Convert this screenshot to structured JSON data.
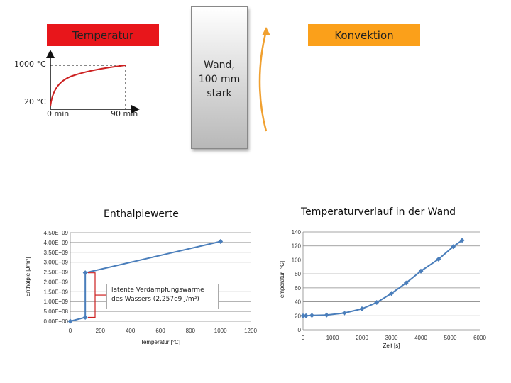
{
  "top": {
    "temperatur_label": "Temperatur",
    "konvektion_label": "Konvektion",
    "wall_label": "Wand,\n100 mm\nstark",
    "mini_chart": {
      "y_top": "1000 °C",
      "y_bottom": "20 °C",
      "x_left": "0 min",
      "x_right": "90 min"
    },
    "colors": {
      "temperatur": "#e8161b",
      "konvektion": "#fba01a",
      "curve": "#cc2020",
      "arrow": "#f0a030"
    }
  },
  "annotation": {
    "line1": "latente Verdampfungswärme",
    "line2": "des Wassers (2.257e9 J/m³)"
  },
  "chart_data": [
    {
      "type": "line",
      "title": "Enthalpiewerte",
      "xlabel": "Temperatur [°C]",
      "ylabel": "Enthalpie [J/m³]",
      "xlim": [
        0,
        1200
      ],
      "ylim": [
        0,
        4500000000.0
      ],
      "x_ticks": [
        "0",
        "200",
        "400",
        "600",
        "800",
        "1000",
        "1200"
      ],
      "y_ticks": [
        "0.00E+00",
        "5.00E+08",
        "1.00E+09",
        "1.50E+09",
        "2.00E+09",
        "2.50E+09",
        "3.00E+09",
        "3.50E+09",
        "4.00E+09",
        "4.50E+09"
      ],
      "grid": "horizontal",
      "series": [
        {
          "x": [
            0,
            100,
            100,
            1000
          ],
          "y": [
            0,
            200000000.0,
            2460000000.0,
            4050000000.0
          ]
        }
      ],
      "color": "#4a7ebb"
    },
    {
      "type": "line",
      "title": "Temperaturverlauf in der Wand",
      "xlabel": "Zeit [s]",
      "ylabel": "Temperatur [°C]",
      "xlim": [
        0,
        6000
      ],
      "ylim": [
        0,
        140
      ],
      "x_ticks": [
        "0",
        "1000",
        "2000",
        "3000",
        "4000",
        "5000",
        "6000"
      ],
      "y_ticks": [
        "0",
        "20",
        "40",
        "60",
        "80",
        "100",
        "120",
        "140"
      ],
      "grid": "horizontal",
      "series": [
        {
          "x": [
            0,
            100,
            300,
            800,
            1400,
            2000,
            2500,
            3000,
            3500,
            4000,
            4600,
            5100,
            5400
          ],
          "y": [
            20,
            20,
            20.5,
            21,
            24,
            30,
            39,
            52,
            67,
            84,
            101,
            119,
            128
          ]
        }
      ],
      "color": "#4a7ebb"
    }
  ]
}
